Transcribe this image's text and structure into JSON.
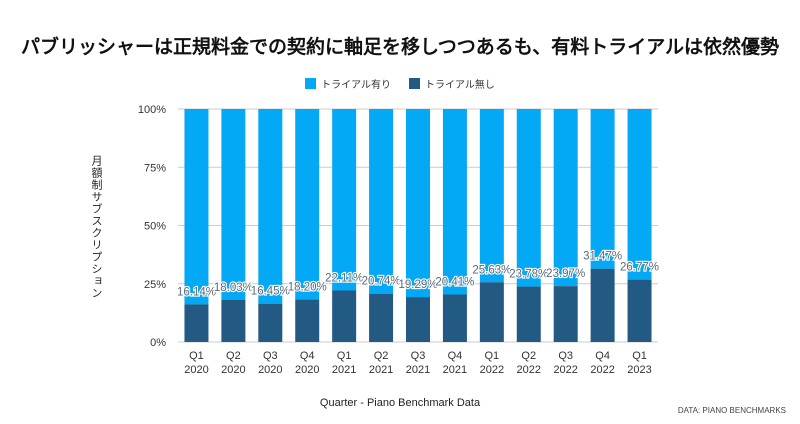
{
  "chart_data": {
    "type": "bar",
    "stacked": true,
    "normalized": true,
    "title": "パブリッシャーは正規料金での契約に軸足を移しつつあるも、有料トライアルは依然優勢",
    "xlabel": "Quarter - Piano Benchmark Data",
    "ylabel": "月額制サブスクリプション",
    "ylim": [
      0,
      100
    ],
    "yticks": [
      "0%",
      "25%",
      "50%",
      "75%",
      "100%"
    ],
    "ytick_values": [
      0,
      25,
      50,
      75,
      100
    ],
    "categories": [
      [
        "Q1",
        "2020"
      ],
      [
        "Q2",
        "2020"
      ],
      [
        "Q3",
        "2020"
      ],
      [
        "Q4",
        "2020"
      ],
      [
        "Q1",
        "2021"
      ],
      [
        "Q2",
        "2021"
      ],
      [
        "Q3",
        "2021"
      ],
      [
        "Q4",
        "2021"
      ],
      [
        "Q1",
        "2022"
      ],
      [
        "Q2",
        "2022"
      ],
      [
        "Q3",
        "2022"
      ],
      [
        "Q4",
        "2022"
      ],
      [
        "Q1",
        "2023"
      ]
    ],
    "series": [
      {
        "name": "トライアル無し",
        "color": "#235a84",
        "values": [
          16.14,
          18.03,
          16.45,
          18.2,
          22.11,
          20.74,
          19.29,
          20.41,
          25.63,
          23.78,
          23.97,
          31.47,
          26.77
        ]
      },
      {
        "name": "トライアル有り",
        "color": "#03a9f4",
        "values": [
          83.86,
          81.97,
          83.55,
          81.8,
          77.89,
          79.26,
          80.71,
          79.59,
          74.37,
          76.22,
          76.03,
          68.53,
          73.23
        ]
      }
    ],
    "data_labels": [
      "16.14%",
      "18.03%",
      "16.45%",
      "18.20%",
      "22.11%",
      "20.74%",
      "19.29%",
      "20.41%",
      "25.63%",
      "23.78%",
      "23.97%",
      "31.47%",
      "26.77%"
    ],
    "legend": {
      "position": "top",
      "entries": [
        "トライアル有り",
        "トライアル無し"
      ]
    },
    "grid": true
  },
  "source": "DATA: PIANO BENCHMARKS"
}
